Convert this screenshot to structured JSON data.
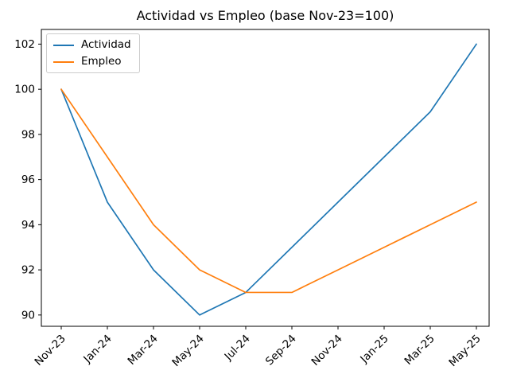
{
  "figure": {
    "title": "Actividad vs Empleo (base Nov-23=100)"
  },
  "chart_data": {
    "type": "line",
    "title": "Actividad vs Empleo (base Nov-23=100)",
    "categories": [
      "Nov-23",
      "Jan-24",
      "Mar-24",
      "May-24",
      "Jul-24",
      "Sep-24",
      "Nov-24",
      "Jan-25",
      "Mar-25",
      "May-25"
    ],
    "series": [
      {
        "name": "Actividad",
        "color": "#1f77b4",
        "values": [
          100,
          95,
          92,
          90,
          91,
          93,
          95,
          97,
          99,
          102
        ]
      },
      {
        "name": "Empleo",
        "color": "#ff7f0e",
        "values": [
          100,
          97,
          94,
          92,
          91,
          91,
          92,
          93,
          94,
          95
        ]
      }
    ],
    "xlabel": "",
    "ylabel": "",
    "ylim": [
      89.5,
      102.65
    ],
    "yticks": [
      90,
      92,
      94,
      96,
      98,
      100,
      102
    ],
    "x_tick_rotation": 45,
    "grid": false,
    "legend_position": "upper left",
    "line_width": 1.7,
    "axis_color": "#000000",
    "background": "#ffffff"
  }
}
